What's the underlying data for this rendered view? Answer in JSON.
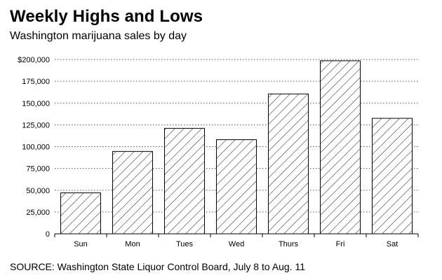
{
  "chart_data": {
    "type": "bar",
    "title": "Weekly Highs and Lows",
    "subtitle": "Washington marijuana sales by day",
    "source": "SOURCE: Washington State Liquor Control Board, July 8 to Aug. 11",
    "xlabel": "",
    "ylabel": "",
    "categories": [
      "Sun",
      "Mon",
      "Tues",
      "Wed",
      "Thurs",
      "Fri",
      "Sat"
    ],
    "values": [
      47000,
      94500,
      121000,
      108000,
      160500,
      198500,
      132500
    ],
    "ylim": [
      0,
      200000
    ],
    "yticks": [
      0,
      25000,
      50000,
      75000,
      100000,
      125000,
      150000,
      175000,
      200000
    ],
    "ytick_labels": [
      "0",
      "25,000",
      "50,000",
      "75,000",
      "100,000",
      "125,000",
      "150,000",
      "175,000",
      "$200,000"
    ],
    "grid": true,
    "bar_pattern": "diagonal-hatch",
    "colors": {
      "bar_fill": "#ffffff",
      "bar_stroke": "#000000",
      "hatch": "#000000",
      "grid": "#555555",
      "axis": "#000000"
    }
  }
}
